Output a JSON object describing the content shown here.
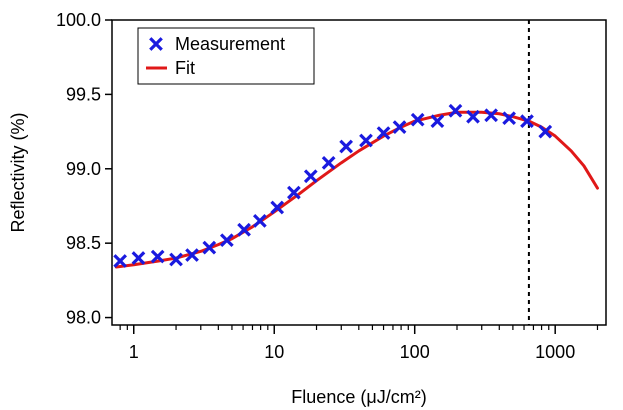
{
  "chart_data": {
    "type": "scatter",
    "title": "",
    "xlabel": "Fluence (μJ/cm²)",
    "ylabel": "Reflectivity (%)",
    "xscale": "log",
    "xlim": [
      0.7,
      2300
    ],
    "ylim": [
      97.95,
      100.0
    ],
    "x_ticks": [
      1,
      10,
      100,
      1000
    ],
    "x_tick_labels": [
      "1",
      "10",
      "100",
      "1000"
    ],
    "y_ticks": [
      98.0,
      98.5,
      99.0,
      99.5,
      100.0
    ],
    "y_tick_labels": [
      "98.0",
      "98.5",
      "99.0",
      "99.5",
      "100.0"
    ],
    "grid": false,
    "legend_position": "top-left",
    "vertical_line": {
      "x": 650,
      "style": "dashed"
    },
    "series": [
      {
        "name": "Measurement",
        "type": "scatter",
        "marker": "x",
        "color": "#1a1adf",
        "x": [
          0.8,
          1.08,
          1.48,
          2.0,
          2.6,
          3.45,
          4.6,
          6.1,
          7.9,
          10.5,
          13.8,
          18.2,
          24.4,
          32.5,
          45.0,
          60.0,
          78.0,
          105.0,
          145.0,
          195.0,
          260.0,
          350.0,
          470.0,
          630.0,
          850.0
        ],
        "y": [
          98.38,
          98.4,
          98.41,
          98.39,
          98.42,
          98.47,
          98.52,
          98.59,
          98.65,
          98.74,
          98.84,
          98.95,
          99.04,
          99.15,
          99.19,
          99.24,
          99.28,
          99.33,
          99.32,
          99.39,
          99.35,
          99.36,
          99.34,
          99.32,
          99.25
        ]
      },
      {
        "name": "Fit",
        "type": "line",
        "color": "#e01818",
        "x": [
          0.75,
          1.0,
          1.5,
          2.0,
          3.0,
          4.0,
          5.0,
          7.0,
          10.0,
          15.0,
          20.0,
          30.0,
          40.0,
          60.0,
          80.0,
          100.0,
          150.0,
          200.0,
          300.0,
          400.0,
          500.0,
          650.0,
          800.0,
          1000.0,
          1300.0,
          1600.0,
          2000.0
        ],
        "y": [
          98.34,
          98.355,
          98.38,
          98.4,
          98.445,
          98.49,
          98.53,
          98.61,
          98.71,
          98.83,
          98.92,
          99.04,
          99.12,
          99.22,
          99.28,
          99.32,
          99.36,
          99.38,
          99.38,
          99.37,
          99.35,
          99.32,
          99.28,
          99.22,
          99.12,
          99.02,
          98.87
        ]
      }
    ]
  }
}
